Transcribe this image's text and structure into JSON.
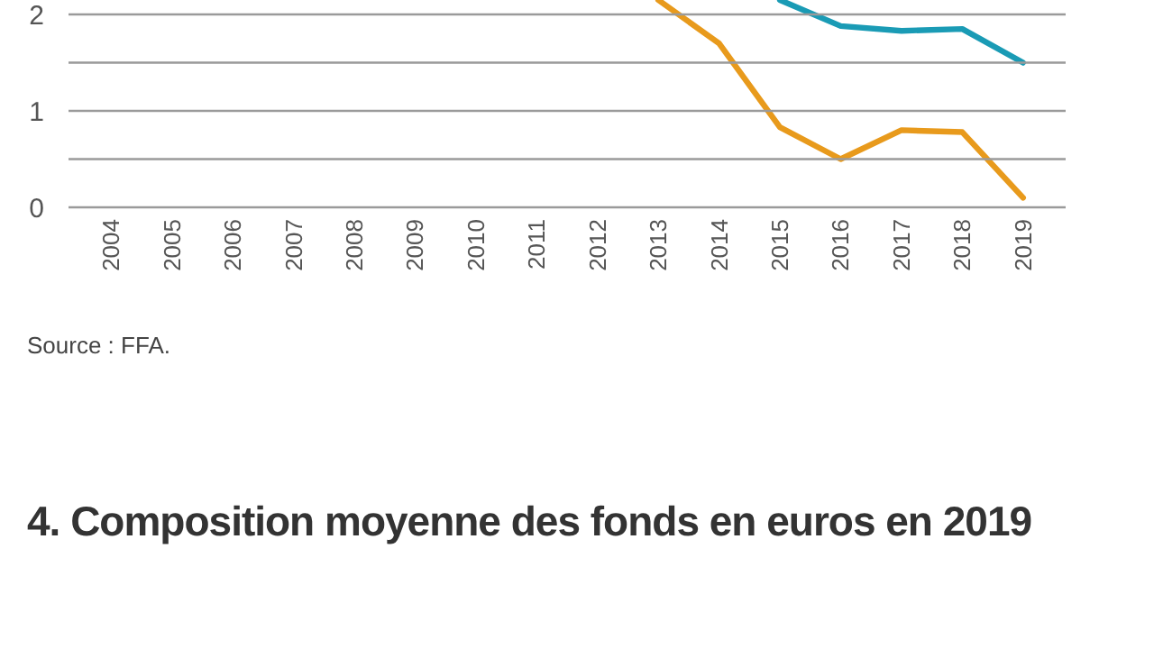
{
  "chart_data": {
    "type": "line",
    "categories": [
      "2004",
      "2005",
      "2006",
      "2007",
      "2008",
      "2009",
      "2010",
      "2011",
      "2012",
      "2013",
      "2014",
      "2015",
      "2016",
      "2017",
      "2018",
      "2019"
    ],
    "series": [
      {
        "color": "#1a9bb5",
        "values": [
          null,
          null,
          null,
          null,
          null,
          null,
          null,
          null,
          null,
          null,
          null,
          2.15,
          1.88,
          1.83,
          1.85,
          1.5
        ]
      },
      {
        "color": "#e89a1c",
        "values": [
          null,
          null,
          null,
          null,
          null,
          null,
          null,
          null,
          null,
          2.15,
          1.7,
          0.83,
          0.5,
          0.8,
          0.78,
          0.1
        ]
      }
    ],
    "ylim": [
      0,
      2.15
    ],
    "yticks": [
      0,
      {
        "value": 0.5,
        "label": null
      },
      1,
      {
        "value": 1.5,
        "label": null
      },
      2
    ],
    "grid": "y",
    "annotations": [
      "Source : FFA.",
      "4. Composition moyenne des fonds en euros en 2019"
    ]
  }
}
